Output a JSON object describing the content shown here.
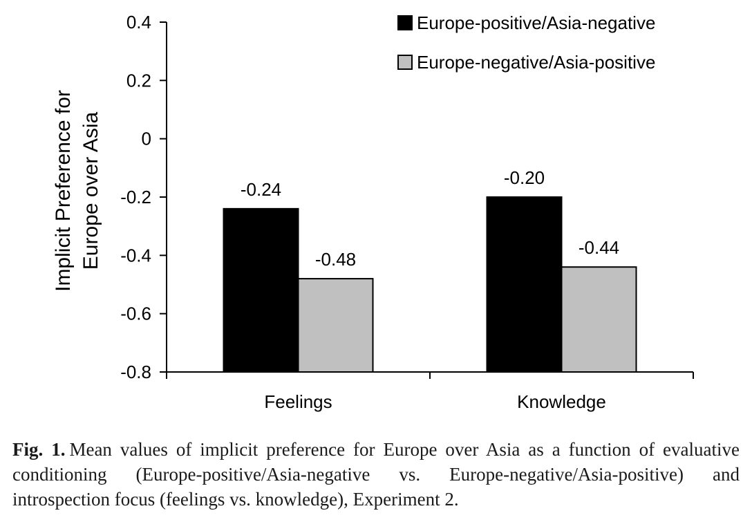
{
  "chart_data": {
    "type": "bar",
    "title": "",
    "xlabel": "",
    "ylabel": "Implicit Preference for Europe over Asia",
    "ylabel_lines": [
      "Implicit Preference for",
      "Europe over Asia"
    ],
    "categories": [
      "Feelings",
      "Knowledge"
    ],
    "series": [
      {
        "name": "Europe-positive/Asia-negative",
        "values": [
          -0.24,
          -0.2
        ],
        "data_labels": [
          "-0.24",
          "-0.20"
        ],
        "color": "#000000"
      },
      {
        "name": "Europe-negative/Asia-positive",
        "values": [
          -0.48,
          -0.44
        ],
        "data_labels": [
          "-0.48",
          "-0.44"
        ],
        "color": "#c0c0c0"
      }
    ],
    "ylim": [
      -0.8,
      0.4
    ],
    "yticks": [
      0.4,
      0.2,
      0,
      -0.2,
      -0.4,
      -0.6,
      -0.8
    ],
    "ytick_labels": [
      "0.4",
      "0.2",
      "0",
      "-0.2",
      "-0.4",
      "-0.6",
      "-0.8"
    ],
    "grid": false,
    "legend_position": "top-right"
  },
  "caption": {
    "label": "Fig. 1.",
    "text": "Mean values of implicit preference for Europe over Asia as a function of evaluative conditioning (Europe-positive/Asia-negative vs. Europe-negative/Asia-positive) and introspection focus (feelings vs. knowledge), Experiment 2."
  }
}
